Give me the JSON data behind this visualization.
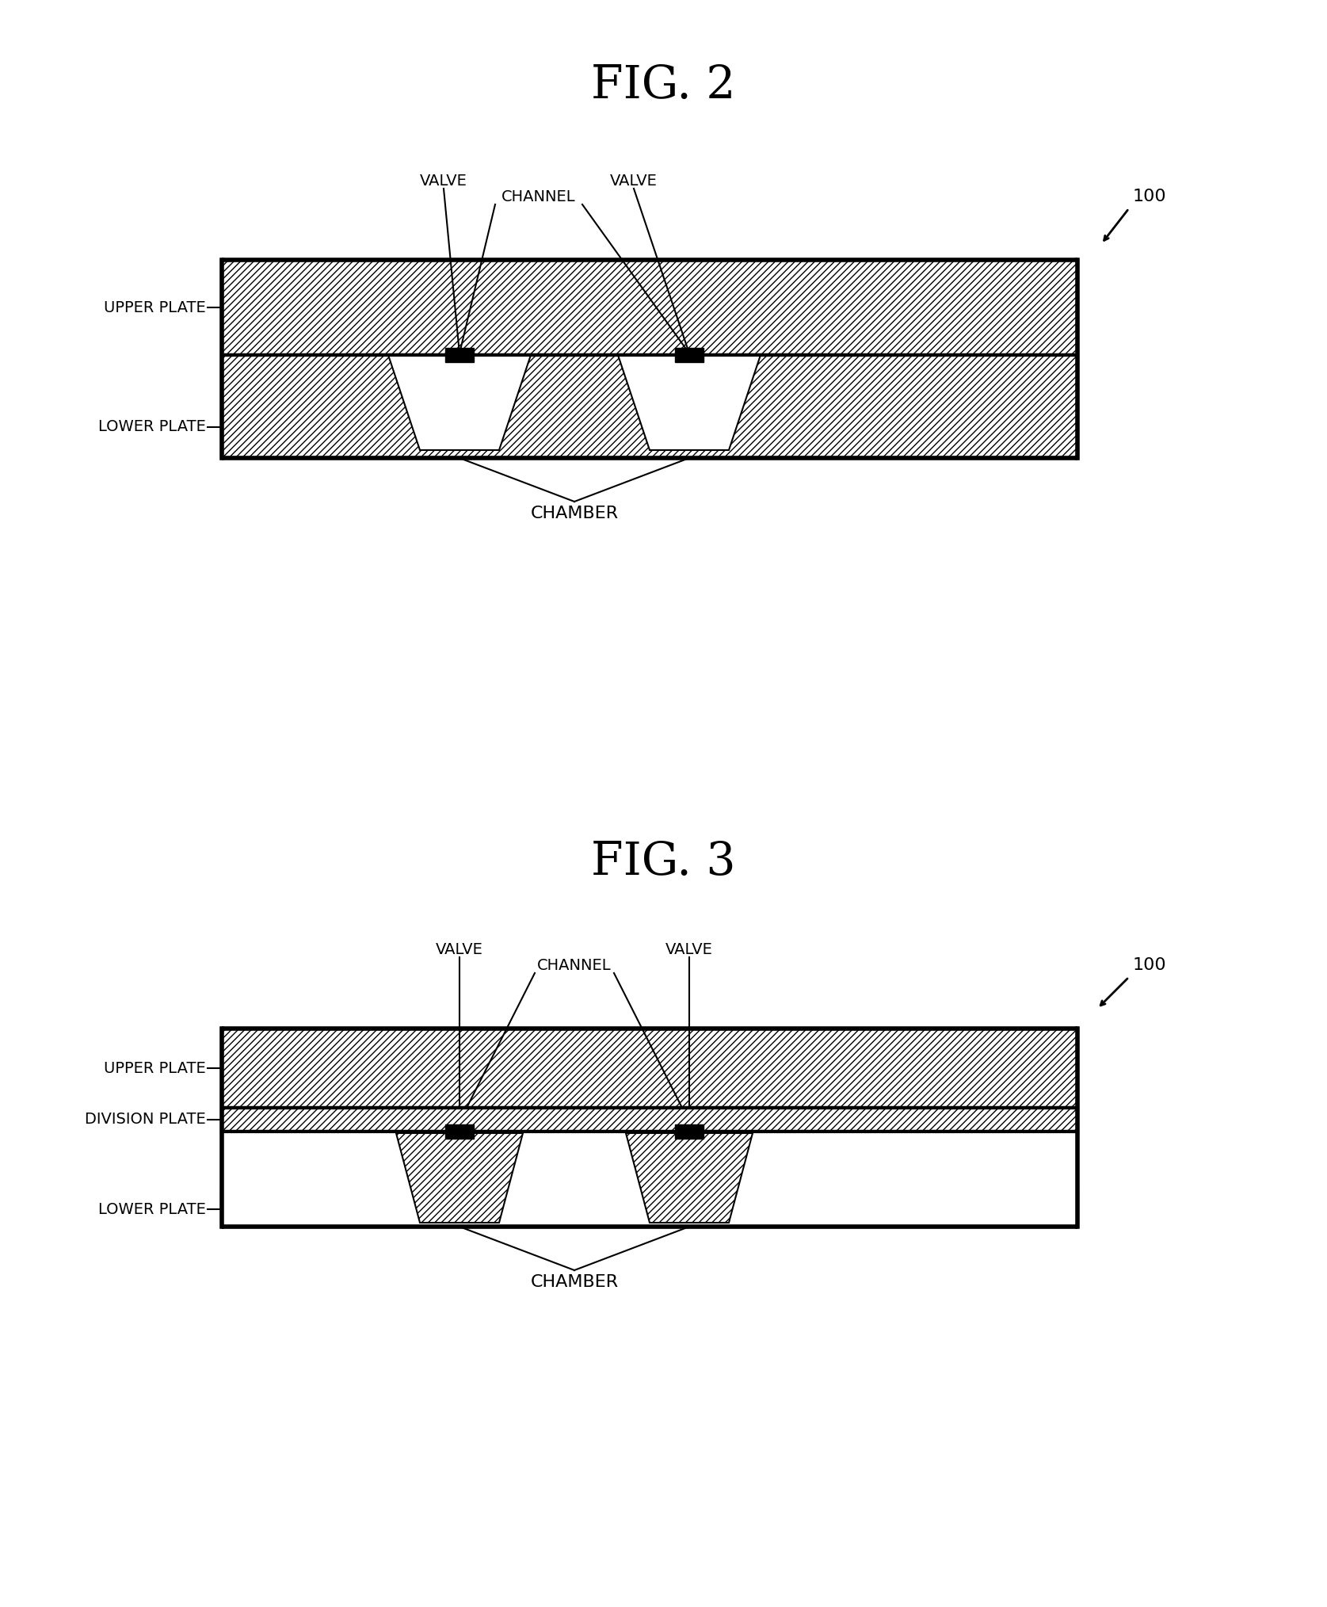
{
  "fig2_title": "FIG. 2",
  "fig3_title": "FIG. 3",
  "bg_color": "#ffffff",
  "label_fontsize": 14,
  "title_fontsize": 42,
  "ref_num": "100",
  "fig2_labels": {
    "valve1": "VALVE",
    "valve2": "VALVE",
    "channel": "CHANNEL",
    "upper_plate": "UPPER PLATE",
    "lower_plate": "LOWER PLATE",
    "chamber": "CHAMBER"
  },
  "fig3_labels": {
    "valve1": "VALVE",
    "valve2": "VALVE",
    "channel": "CHANNEL",
    "upper_plate": "UPPER PLATE",
    "division_plate": "DIVISION PLATE",
    "lower_plate": "LOWER PLATE",
    "chamber": "CHAMBER"
  }
}
